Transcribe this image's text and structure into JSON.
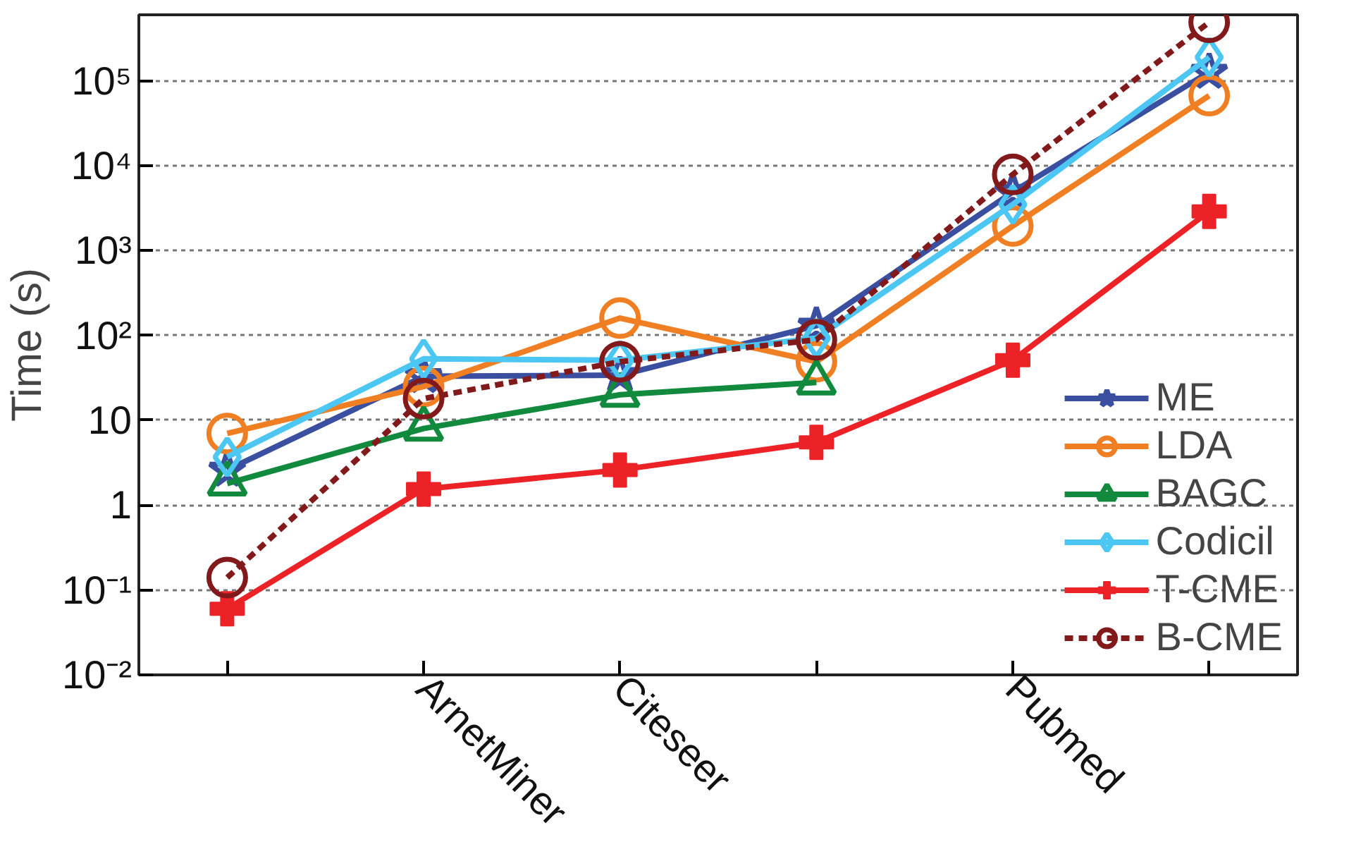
{
  "chart_data": {
    "type": "line",
    "ylabel": "Time (s)",
    "categories": [
      null,
      "ArnetMiner",
      "Citeseer",
      null,
      "Pubmed",
      null
    ],
    "log": "y",
    "ylim": [
      0.01,
      600000
    ],
    "yticks": [
      {
        "value": 0.01,
        "label": "10⁻²"
      },
      {
        "value": 0.1,
        "label": "10⁻¹"
      },
      1,
      10,
      {
        "value": 100,
        "label": "10²"
      },
      {
        "value": 1000,
        "label": "10³"
      },
      {
        "value": 10000,
        "label": "10⁴"
      },
      {
        "value": 100000,
        "label": "10⁵"
      }
    ],
    "grid": "y",
    "legend": "bottom right",
    "series": [
      {
        "name": "ME",
        "color": "#3a4fa0",
        "marker": "star",
        "line_style": "solid",
        "values": [
          2.6,
          33,
          34,
          130,
          4900,
          127000
        ]
      },
      {
        "name": "LDA",
        "color": "#ef7f22",
        "marker": "circle",
        "line_style": "solid",
        "values": [
          7,
          25,
          160,
          49,
          1950,
          67000
        ]
      },
      {
        "name": "BAGC",
        "color": "#128a3e",
        "marker": "triangle",
        "line_style": "solid",
        "values": [
          1.8,
          8,
          20,
          28,
          null,
          null
        ]
      },
      {
        "name": "Codicil",
        "color": "#4cc6f2",
        "marker": "diamond",
        "line_style": "solid",
        "values": [
          3.7,
          53,
          51,
          93,
          3500,
          190000
        ]
      },
      {
        "name": "T-CME",
        "color": "#ec2227",
        "marker": "cross",
        "line_style": "solid",
        "values": [
          0.06,
          1.55,
          2.6,
          5.5,
          51,
          2900
        ]
      },
      {
        "name": "B-CME",
        "color": "#821a1c",
        "marker": "circle",
        "line_style": "dashed",
        "values": [
          0.14,
          18,
          49,
          89,
          7900,
          490000
        ]
      }
    ]
  }
}
